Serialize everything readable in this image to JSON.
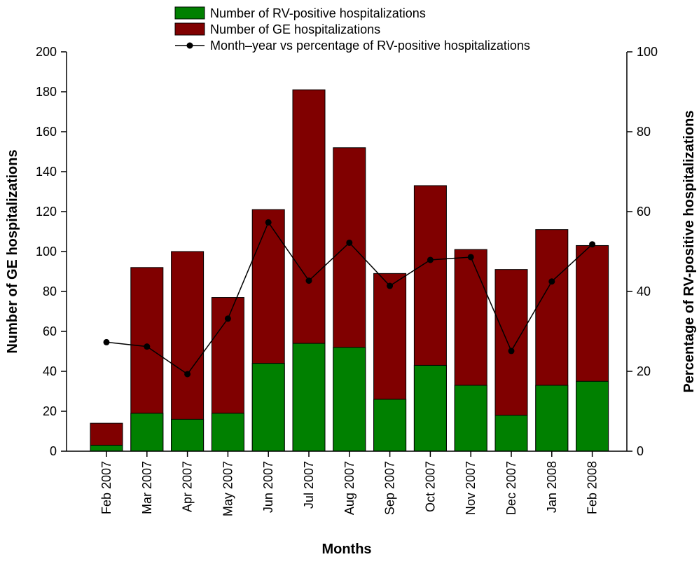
{
  "chart_data": {
    "type": "bar",
    "categories": [
      "Feb 2007",
      "Mar 2007",
      "Apr 2007",
      "May 2007",
      "Jun 2007",
      "Jul 2007",
      "Aug 2007",
      "Sep 2007",
      "Oct 2007",
      "Nov 2007",
      "Dec 2007",
      "Jan 2008",
      "Feb 2008"
    ],
    "series": [
      {
        "name": "Number of GE hospitalizations",
        "kind": "bar",
        "axis": "left",
        "color": "#800000",
        "values": [
          14,
          92,
          100,
          77,
          121,
          181,
          152,
          89,
          133,
          101,
          91,
          111,
          103
        ]
      },
      {
        "name": "Number of RV-positive hospitalizations",
        "kind": "bar",
        "axis": "left",
        "color": "#008000",
        "values": [
          3,
          19,
          16,
          19,
          44,
          54,
          52,
          26,
          43,
          33,
          18,
          33,
          35
        ]
      },
      {
        "name": "Month–year vs percentage of RV-positive hospitalizations",
        "kind": "line",
        "axis": "right",
        "color": "#000000",
        "values": [
          27.3,
          26.2,
          19.3,
          33.2,
          57.3,
          42.7,
          52.2,
          41.4,
          47.9,
          48.6,
          25.1,
          42.5,
          51.8
        ]
      }
    ],
    "xlabel": "Months",
    "ylabel_left": "Number of GE hospitalizations",
    "ylabel_right": "Percentage of RV-positive hospitalizations",
    "ylim_left": [
      0,
      200
    ],
    "ylim_right": [
      0,
      100
    ],
    "yticks_left": [
      0,
      20,
      40,
      60,
      80,
      100,
      120,
      140,
      160,
      180,
      200
    ],
    "yticks_right": [
      0,
      20,
      40,
      60,
      80,
      100
    ],
    "grid": false,
    "legend_position": "top-center",
    "legend": [
      {
        "label": "Number of RV-positive hospitalizations",
        "symbol": "box",
        "color": "#008000"
      },
      {
        "label": "Number of GE hospitalizations",
        "symbol": "box",
        "color": "#800000"
      },
      {
        "label": "Month–year vs percentage of RV-positive hospitalizations",
        "symbol": "line-dot",
        "color": "#000000"
      }
    ]
  }
}
